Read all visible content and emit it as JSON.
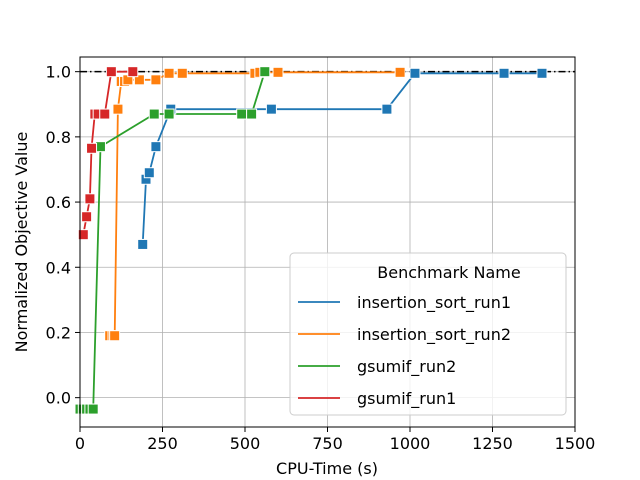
{
  "chart_data": {
    "type": "line",
    "title": "",
    "xlabel": "CPU-Time (s)",
    "ylabel": "Normalized Objective Value",
    "xlim": [
      0,
      1500
    ],
    "ylim": [
      -0.09,
      1.045
    ],
    "xticks": [
      0,
      250,
      500,
      750,
      1000,
      1250,
      1500
    ],
    "yticks": [
      0.0,
      0.2,
      0.4,
      0.6,
      0.8,
      1.0
    ],
    "xtick_labels": [
      "0",
      "250",
      "500",
      "750",
      "1000",
      "1250",
      "1500"
    ],
    "ytick_labels": [
      "0.0",
      "0.2",
      "0.4",
      "0.6",
      "0.8",
      "1.0"
    ],
    "grid": true,
    "marker": "square",
    "reference_line": {
      "y": 1.0,
      "style": "dash-dot",
      "color": "#000000"
    },
    "legend": {
      "title": "Benchmark Name",
      "placement": "lower-right"
    },
    "series": [
      {
        "name": "insertion_sort_run1",
        "color": "#1f77b4",
        "x": [
          190,
          200,
          210,
          230,
          275,
          580,
          930,
          1015,
          1285,
          1400
        ],
        "y": [
          0.47,
          0.67,
          0.69,
          0.77,
          0.885,
          0.885,
          0.885,
          0.995,
          0.995,
          0.995
        ]
      },
      {
        "name": "insertion_sort_run2",
        "color": "#ff7f0e",
        "x": [
          90,
          100,
          105,
          115,
          125,
          135,
          145,
          180,
          230,
          270,
          310,
          530,
          545,
          600,
          970
        ],
        "y": [
          0.19,
          0.19,
          0.19,
          0.885,
          0.97,
          0.97,
          0.975,
          0.975,
          0.975,
          0.995,
          0.995,
          0.995,
          0.998,
          0.998,
          0.998
        ]
      },
      {
        "name": "gsumif_run2",
        "color": "#2ca02c",
        "x": [
          0,
          10,
          20,
          30,
          40,
          62,
          225,
          270,
          490,
          520,
          560
        ],
        "y": [
          -0.035,
          -0.035,
          -0.035,
          -0.035,
          -0.035,
          0.77,
          0.87,
          0.87,
          0.87,
          0.87,
          1.0
        ]
      },
      {
        "name": "gsumif_run1",
        "color": "#d62728",
        "x": [
          10,
          20,
          30,
          35,
          45,
          55,
          75,
          95,
          160
        ],
        "y": [
          0.5,
          0.555,
          0.61,
          0.765,
          0.87,
          0.87,
          0.87,
          1.0,
          1.0
        ]
      }
    ]
  }
}
